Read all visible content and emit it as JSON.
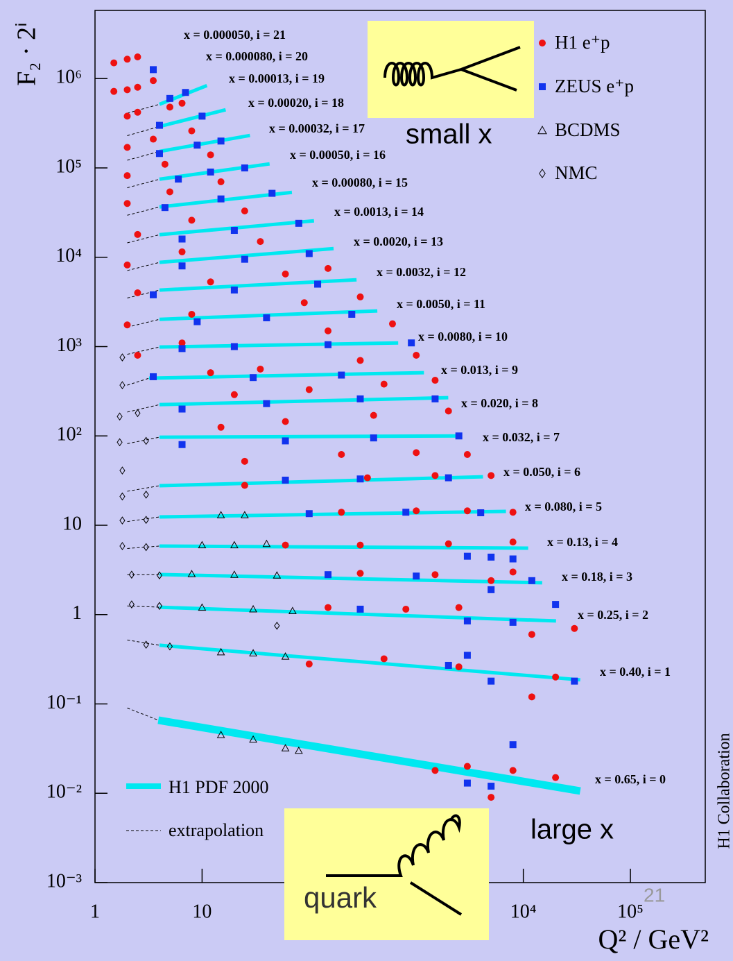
{
  "chart_data": {
    "type": "scatter",
    "y_label": "F₂ · 2ⁱ",
    "x_label": "Q² / GeV²",
    "log_x": true,
    "log_y": true,
    "xlim": [
      1,
      500000
    ],
    "ylim": [
      0.001,
      5800000
    ],
    "xticks": [
      1,
      10,
      {
        "value": 10000,
        "label": "10⁴"
      },
      {
        "value": 100000,
        "label": "10⁵"
      }
    ],
    "yticks": [
      {
        "value": 0.001,
        "label": "10⁻³"
      },
      {
        "value": 0.01,
        "label": "10⁻²"
      },
      {
        "value": 0.1,
        "label": "10⁻¹"
      },
      1,
      10,
      {
        "value": 100,
        "label": "10²"
      },
      {
        "value": 1000,
        "label": "10³"
      },
      {
        "value": 10000,
        "label": "10⁴"
      },
      {
        "value": 100000,
        "label": "10⁵"
      },
      {
        "value": 1000000,
        "label": "10⁶"
      }
    ],
    "series": [
      {
        "name": "H1 e⁺p",
        "color": "#ee1111",
        "marker": "circle",
        "x": [
          1.5,
          2,
          2.5,
          1.5,
          2,
          2.5,
          3.5,
          2,
          2.5,
          5,
          6.5,
          2,
          3.5,
          8,
          2,
          4.5,
          12,
          2,
          5,
          15,
          2.5,
          8,
          25,
          2,
          6.5,
          35,
          2.5,
          12,
          60,
          150,
          2,
          8,
          90,
          300,
          2.5,
          6.5,
          150,
          600,
          12,
          35,
          300,
          1000,
          20,
          100,
          500,
          1500,
          15,
          60,
          400,
          2000,
          25,
          200,
          1000,
          3000,
          25,
          350,
          1500,
          5000,
          200,
          1000,
          3000,
          8000,
          60,
          300,
          2000,
          8000,
          300,
          1500,
          5000,
          8000,
          150,
          800,
          2500,
          12000,
          30000,
          100,
          500,
          2500,
          12000,
          20000,
          1500,
          3000,
          5000,
          8000,
          20000
        ],
        "values": [
          1500000,
          1650000,
          1750000,
          720000,
          750000,
          800000,
          950000,
          380000,
          420000,
          480000,
          530000,
          170000,
          210000,
          260000,
          82000,
          110000,
          140000,
          40000,
          54000,
          70000,
          18000,
          26000,
          33000,
          8200,
          11500,
          15000,
          4000,
          5300,
          6500,
          7500,
          1750,
          2300,
          3100,
          3600,
          800,
          1100,
          1500,
          1800,
          510,
          560,
          700,
          800,
          290,
          330,
          380,
          420,
          125,
          145,
          170,
          190,
          52,
          62,
          65,
          62,
          28,
          34,
          36,
          36,
          14,
          14.5,
          14.5,
          14,
          6,
          6,
          6.2,
          6.5,
          2.9,
          2.8,
          2.4,
          3,
          1.2,
          1.15,
          1.2,
          0.6,
          0.7,
          0.28,
          0.32,
          0.26,
          0.12,
          0.2,
          0.018,
          0.02,
          0.009,
          0.018,
          0.015
        ]
      },
      {
        "name": "ZEUS e⁺p",
        "color": "#1133ee",
        "marker": "square",
        "x": [
          3.5,
          5,
          7,
          4,
          10,
          4,
          9,
          15,
          6,
          12,
          25,
          4.5,
          15,
          45,
          6.5,
          20,
          80,
          6.5,
          25,
          100,
          3.5,
          20,
          120,
          9,
          40,
          250,
          6.5,
          20,
          150,
          900,
          3.5,
          30,
          200,
          6.5,
          40,
          300,
          1500,
          6.5,
          60,
          400,
          2500,
          60,
          300,
          2000,
          100,
          800,
          4000,
          3000,
          5000,
          8000,
          150,
          1000,
          5000,
          12000,
          300,
          3000,
          8000,
          20000,
          2000,
          3000,
          5000,
          30000,
          3000,
          5000,
          8000
        ],
        "values": [
          1260000,
          600000,
          700000,
          300000,
          380000,
          145000,
          180000,
          200000,
          75000,
          90000,
          100000,
          36000,
          45000,
          52000,
          16000,
          20000,
          24000,
          8000,
          9500,
          11000,
          3800,
          4300,
          5000,
          1900,
          2100,
          2300,
          950,
          1000,
          1050,
          1100,
          460,
          450,
          480,
          200,
          230,
          260,
          260,
          80,
          88,
          95,
          100,
          32,
          33,
          34,
          13.5,
          14,
          13.8,
          4.5,
          4.4,
          4.2,
          2.8,
          2.7,
          1.9,
          2.4,
          1.15,
          0.85,
          0.82,
          1.3,
          0.27,
          0.35,
          0.18,
          0.18,
          0.013,
          0.012,
          0.035
        ]
      },
      {
        "name": "BCDMS",
        "color": "#000000",
        "marker": "triangle",
        "x": [
          15,
          25,
          10,
          20,
          40,
          8,
          20,
          50,
          10,
          30,
          70,
          15,
          30,
          60,
          15,
          30,
          60,
          80
        ],
        "values": [
          13,
          13,
          6,
          6,
          6.2,
          2.85,
          2.8,
          2.75,
          1.2,
          1.15,
          1.1,
          0.38,
          0.37,
          0.34,
          0.045,
          0.04,
          0.032,
          0.03
        ]
      },
      {
        "name": "NMC",
        "color": "#000000",
        "marker": "diamond",
        "x": [
          1.8,
          1.8,
          1.7,
          2.5,
          1.7,
          3,
          1.8,
          1.8,
          3,
          1.8,
          3,
          1.8,
          3,
          2.2,
          4,
          2.2,
          4,
          3,
          5,
          50
        ],
        "values": [
          757,
          370,
          165,
          180,
          85,
          88,
          41,
          21,
          22,
          11.3,
          11.5,
          5.85,
          5.7,
          2.8,
          2.75,
          1.3,
          1.25,
          0.46,
          0.44,
          0.75
        ]
      }
    ],
    "fit_legend": "H1 PDF 2000",
    "fit_color": "#00e8f0",
    "extrapolation_legend": "extrapolation",
    "bins": [
      {
        "label": "x = 0.000050, i = 21"
      },
      {
        "label": "x = 0.000080, i = 20"
      },
      {
        "label": "x = 0.00013, i = 19",
        "fit": {
          "x": [
            4,
            11.1
          ],
          "values": [
            516000,
            836000
          ]
        },
        "extrapolation": {
          "x": 2,
          "value": 410000
        }
      },
      {
        "label": "x = 0.00020, i = 18",
        "fit": {
          "x": [
            4,
            16.6
          ],
          "values": [
            291000,
            448000
          ]
        },
        "extrapolation": {
          "x": 2,
          "value": 230000
        }
      },
      {
        "label": "x = 0.00032, i = 17",
        "fit": {
          "x": [
            4,
            28
          ],
          "values": [
            153000,
            231000
          ]
        },
        "extrapolation": {
          "x": 2,
          "value": 122000
        }
      },
      {
        "label": "x = 0.00050, i = 16",
        "fit": {
          "x": [
            4,
            42.7
          ],
          "values": [
            74800,
            111000
          ]
        },
        "extrapolation": {
          "x": 2,
          "value": 60000
        }
      },
      {
        "label": "x = 0.00080, i = 15",
        "fit": {
          "x": [
            4,
            69
          ],
          "values": [
            36600,
            53300
          ]
        },
        "extrapolation": {
          "x": 2,
          "value": 29500
        }
      },
      {
        "label": "x = 0.0013, i = 14",
        "fit": {
          "x": [
            4,
            111
          ],
          "values": [
            17900,
            25600
          ]
        },
        "extrapolation": {
          "x": 2,
          "value": 14500
        }
      },
      {
        "label": "x = 0.0020, i = 13",
        "fit": {
          "x": [
            4,
            169
          ],
          "values": [
            8770,
            12500
          ]
        },
        "extrapolation": {
          "x": 2,
          "value": 7100
        }
      },
      {
        "label": "x = 0.0032, i = 12",
        "fit": {
          "x": [
            4,
            277
          ],
          "values": [
            4290,
            5600
          ]
        },
        "extrapolation": {
          "x": 2,
          "value": 3500
        }
      },
      {
        "label": "x = 0.0050, i = 11",
        "fit": {
          "x": [
            4,
            433
          ],
          "values": [
            2020,
            2510
          ]
        },
        "extrapolation": {
          "x": 2,
          "value": 1650
        }
      },
      {
        "label": "x = 0.0080, i = 10",
        "fit": {
          "x": [
            4,
            678
          ],
          "values": [
            989,
            1100
          ]
        },
        "extrapolation": {
          "x": 2,
          "value": 820
        }
      },
      {
        "label": "x = 0.013, i = 9",
        "fit": {
          "x": [
            3.2,
            1180
          ],
          "values": [
            443,
            511
          ]
        },
        "extrapolation": {
          "x": 2,
          "value": 370
        }
      },
      {
        "label": "x = 0.020, i = 8",
        "fit": {
          "x": [
            4,
            1990
          ],
          "values": [
            224,
            268
          ]
        },
        "extrapolation": {
          "x": 2,
          "value": 185
        }
      },
      {
        "label": "x = 0.032, i = 7",
        "fit": {
          "x": [
            4,
            2680
          ],
          "values": [
            96.8,
            100
          ]
        },
        "extrapolation": {
          "x": 2,
          "value": 82
        }
      },
      {
        "label": "x = 0.050, i = 6",
        "fit": {
          "x": [
            4,
            4200
          ],
          "values": [
            27.7,
            34.9
          ]
        },
        "extrapolation": {
          "x": 2,
          "value": 24
        }
      },
      {
        "label": "x = 0.080, i = 5",
        "fit": {
          "x": [
            4,
            6880
          ],
          "values": [
            12.4,
            14.3
          ]
        },
        "extrapolation": {
          "x": 2,
          "value": 11
        }
      },
      {
        "label": "x = 0.13, i = 4",
        "fit": {
          "x": [
            4,
            11100
          ],
          "values": [
            5.85,
            5.55
          ]
        },
        "extrapolation": {
          "x": 2,
          "value": 5.5
        }
      },
      {
        "label": "x = 0.18, i = 3",
        "fit": {
          "x": [
            4,
            15000
          ],
          "values": [
            2.81,
            2.27
          ]
        },
        "extrapolation": {
          "x": 2,
          "value": 2.8
        }
      },
      {
        "label": "x = 0.25, i = 2",
        "fit": {
          "x": [
            4,
            20200
          ],
          "values": [
            1.21,
            0.849
          ]
        },
        "extrapolation": {
          "x": 2,
          "value": 1.25
        }
      },
      {
        "label": "x = 0.40, i = 1",
        "fit": {
          "x": [
            4,
            34000
          ],
          "values": [
            0.454,
            0.186
          ]
        },
        "extrapolation": {
          "x": 2,
          "value": 0.52
        }
      },
      {
        "label": "x = 0.65, i = 0",
        "fit": {
          "x": [
            3.9,
            34000
          ],
          "values": [
            0.0658,
            0.0106
          ]
        },
        "extrapolation": {
          "x": 2,
          "value": 0.09
        }
      }
    ],
    "annotations": {
      "small_x": "small x",
      "large_x": "large x",
      "quark": "quark",
      "collaboration": "H1 Collaboration",
      "page_number": "21"
    }
  }
}
